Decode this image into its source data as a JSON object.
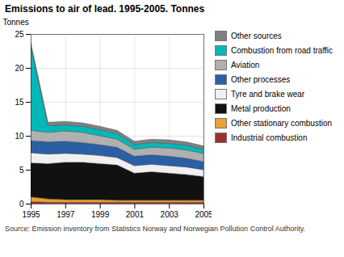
{
  "chart_data": {
    "type": "area",
    "stacked": true,
    "title": "Emissions to air of lead. 1995-2005. Tonnes",
    "ylabel": "Tonnes",
    "source": "Source: Emission inventory from Statistics Norway and Norwegian Pollution Control Authority.",
    "x": [
      1995,
      1996,
      1997,
      1998,
      1999,
      2000,
      2001,
      2002,
      2003,
      2004,
      2005
    ],
    "series": [
      {
        "name": "Industrial combustion",
        "color": "#a0302a",
        "values": [
          0.3,
          0.2,
          0.2,
          0.2,
          0.2,
          0.2,
          0.2,
          0.2,
          0.2,
          0.2,
          0.2
        ]
      },
      {
        "name": "Other stationary combustion",
        "color": "#e8a030",
        "values": [
          0.7,
          0.5,
          0.4,
          0.4,
          0.4,
          0.3,
          0.3,
          0.3,
          0.3,
          0.3,
          0.3
        ]
      },
      {
        "name": "Metal production",
        "color": "#111111",
        "values": [
          5.0,
          5.2,
          5.5,
          5.5,
          5.3,
          5.2,
          4.0,
          4.2,
          4.0,
          3.8,
          3.5
        ]
      },
      {
        "name": "Tyre and brake wear",
        "color": "#f0f0f0",
        "values": [
          1.5,
          1.4,
          1.3,
          1.2,
          1.2,
          1.1,
          1.1,
          1.1,
          1.1,
          1.1,
          1.0
        ]
      },
      {
        "name": "Other processes",
        "color": "#2a5fa5",
        "values": [
          1.8,
          1.8,
          1.8,
          1.7,
          1.6,
          1.5,
          1.4,
          1.4,
          1.4,
          1.3,
          1.2
        ]
      },
      {
        "name": "Aviation",
        "color": "#b0b0b0",
        "values": [
          1.5,
          1.4,
          1.5,
          1.5,
          1.3,
          1.2,
          1.0,
          1.1,
          1.2,
          1.2,
          1.2
        ]
      },
      {
        "name": "Combustion from road traffic",
        "color": "#00b8b8",
        "values": [
          12.5,
          1.0,
          0.9,
          0.9,
          0.9,
          0.8,
          0.7,
          0.7,
          0.7,
          0.7,
          0.6
        ]
      },
      {
        "name": "Other sources",
        "color": "#808080",
        "values": [
          0.5,
          0.5,
          0.5,
          0.5,
          0.5,
          0.5,
          0.5,
          0.5,
          0.5,
          0.5,
          0.5
        ]
      }
    ],
    "xlim": [
      1995,
      2005
    ],
    "xticks": [
      1995,
      1997,
      1999,
      2001,
      2003,
      2005
    ],
    "ylim": [
      0,
      25
    ],
    "yticks": [
      0,
      5,
      10,
      15,
      20,
      25
    ],
    "grid": true,
    "legend": "right"
  }
}
